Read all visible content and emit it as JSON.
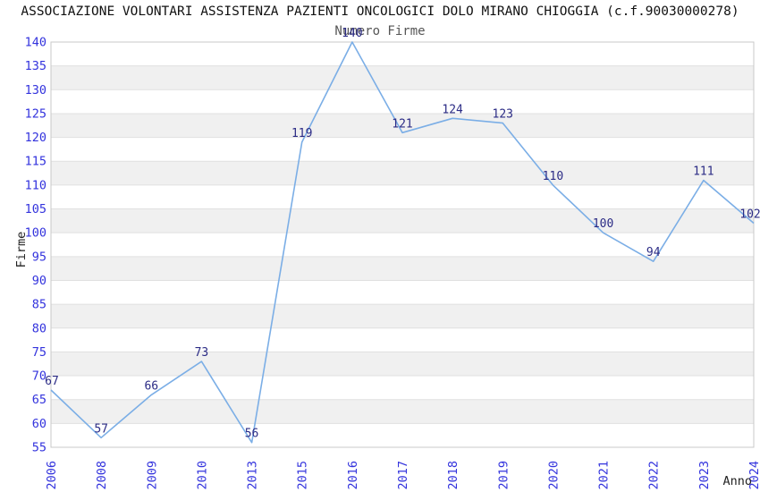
{
  "header": {
    "title": "ASSOCIAZIONE VOLONTARI ASSISTENZA PAZIENTI ONCOLOGICI DOLO MIRANO CHIOGGIA (c.f.90030000278)"
  },
  "chart_data": {
    "type": "line",
    "title": "Numero Firme",
    "xlabel": "Anno",
    "ylabel": "Firme",
    "categories": [
      "2006",
      "2008",
      "2009",
      "2010",
      "2013",
      "2015",
      "2016",
      "2017",
      "2018",
      "2019",
      "2020",
      "2021",
      "2022",
      "2023",
      "2024"
    ],
    "values": [
      67,
      57,
      66,
      73,
      56,
      119,
      140,
      121,
      124,
      123,
      110,
      100,
      94,
      111,
      102
    ],
    "ylim": [
      55,
      140
    ],
    "ytick_step": 5,
    "grid": "horizontal",
    "bands": "alternating-gray",
    "legend": "none",
    "point_labels": true,
    "colors": {
      "line": "#7baee6",
      "tick_label": "#3333dd",
      "point_label": "#2b2b85",
      "title": "#111111",
      "subtitle": "#555555",
      "axis_label": "#222222",
      "gridline": "#e0e0e0",
      "band": "#f0f0f0",
      "border": "#c8c8c8",
      "background": "#ffffff"
    }
  }
}
